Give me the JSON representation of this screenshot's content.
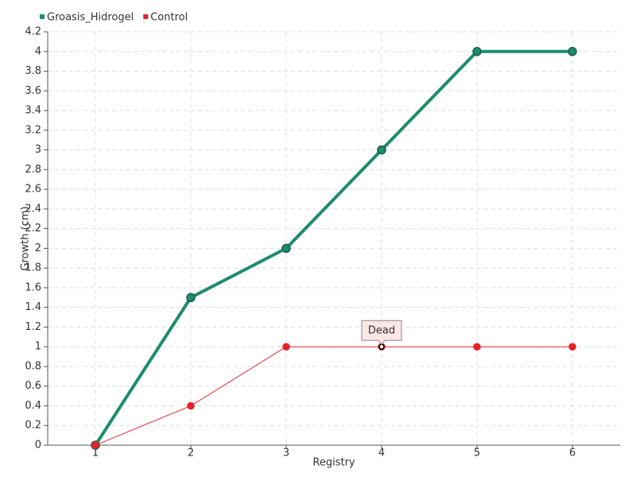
{
  "chart_data": {
    "type": "line",
    "x": [
      1,
      2,
      3,
      4,
      5,
      6
    ],
    "series": [
      {
        "name": "Groasis_Hidrogel",
        "color": "#1e8c6e",
        "values": [
          0,
          1.5,
          2,
          3,
          4,
          4
        ]
      },
      {
        "name": "Control",
        "color": "#e8202a",
        "values": [
          0,
          0.4,
          1,
          1,
          1,
          1
        ]
      }
    ],
    "xlabel": "Registry",
    "ylabel": "Growth (cm)",
    "xlim": [
      0.5,
      6.5
    ],
    "xticks": [
      1,
      2,
      3,
      4,
      5,
      6
    ],
    "ylim": [
      0,
      4.2
    ],
    "yticks": [
      0,
      0.2,
      0.4,
      0.6,
      0.8,
      1,
      1.2,
      1.4,
      1.6,
      1.8,
      2,
      2.2,
      2.4,
      2.6,
      2.8,
      3,
      3.2,
      3.4,
      3.6,
      3.8,
      4,
      4.2
    ],
    "grid": true,
    "legend": "top-left",
    "annotations": [
      {
        "text": "Dead",
        "series": 1,
        "index": 3
      }
    ]
  }
}
